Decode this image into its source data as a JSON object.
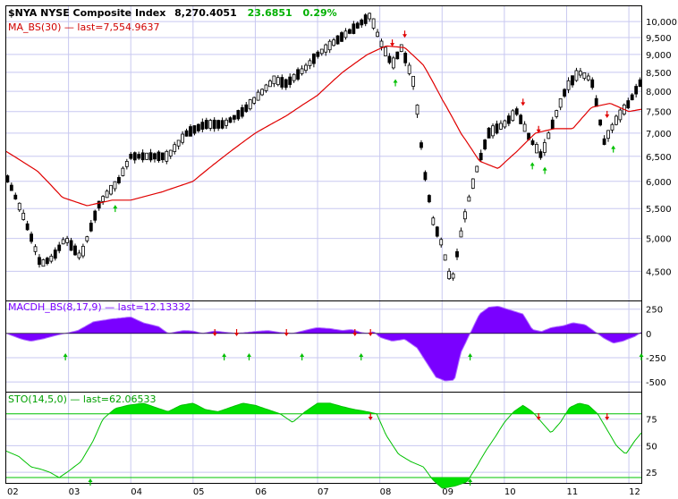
{
  "header": {
    "symbol": "$NYA NYSE Composite Index",
    "price": "8,270.4051",
    "change": "23.6851",
    "change_pct": "0.29%"
  },
  "colors": {
    "up": "#000000",
    "ma": "#e00000",
    "macd": "#7a00ff",
    "sto": "#00e000",
    "sell_arrow": "#e00000",
    "buy_arrow": "#00c000",
    "grid": "#c8c8f0",
    "sto_lines": "#00c000"
  },
  "chart_data": [
    {
      "type": "candlestick",
      "legend": "MA_BS(30) — last=7,554.9637",
      "scale": "log",
      "ylim": [
        4100,
        10500
      ],
      "y_ticks": [
        "10,000",
        "9,500",
        "9,000",
        "8,500",
        "8,000",
        "7,500",
        "7,000",
        "6,500",
        "6,000",
        "5,500",
        "5,000",
        "4,500"
      ],
      "y_tick_values": [
        10000,
        9500,
        9000,
        8500,
        8000,
        7500,
        7000,
        6500,
        6000,
        5500,
        5000,
        4500
      ],
      "x_ticks": [
        "02",
        "03",
        "04",
        "05",
        "06",
        "07",
        "08",
        "09",
        "10",
        "11",
        "12"
      ],
      "x_tick_values": [
        2002,
        2003,
        2004,
        2005,
        2006,
        2007,
        2008,
        2009,
        2010,
        2011,
        2012
      ],
      "xlim": [
        2002.0,
        2012.2
      ],
      "price_keys": [
        [
          2002.0,
          6100
        ],
        [
          2002.3,
          5300
        ],
        [
          2002.55,
          4600
        ],
        [
          2002.75,
          4700
        ],
        [
          2002.95,
          5000
        ],
        [
          2003.2,
          4700
        ],
        [
          2003.5,
          5600
        ],
        [
          2003.8,
          6000
        ],
        [
          2004.0,
          6500
        ],
        [
          2004.3,
          6500
        ],
        [
          2004.6,
          6500
        ],
        [
          2004.9,
          7000
        ],
        [
          2005.2,
          7200
        ],
        [
          2005.5,
          7200
        ],
        [
          2005.8,
          7500
        ],
        [
          2006.0,
          7800
        ],
        [
          2006.3,
          8300
        ],
        [
          2006.5,
          8200
        ],
        [
          2006.8,
          8600
        ],
        [
          2007.0,
          9000
        ],
        [
          2007.3,
          9400
        ],
        [
          2007.6,
          9800
        ],
        [
          2007.85,
          10200
        ],
        [
          2008.0,
          9400
        ],
        [
          2008.2,
          8700
        ],
        [
          2008.35,
          9200
        ],
        [
          2008.55,
          8200
        ],
        [
          2008.7,
          6300
        ],
        [
          2008.85,
          5300
        ],
        [
          2009.0,
          4900
        ],
        [
          2009.15,
          4300
        ],
        [
          2009.35,
          5300
        ],
        [
          2009.55,
          6200
        ],
        [
          2009.75,
          7000
        ],
        [
          2010.0,
          7200
        ],
        [
          2010.2,
          7500
        ],
        [
          2010.4,
          6900
        ],
        [
          2010.6,
          6500
        ],
        [
          2010.8,
          7300
        ],
        [
          2011.0,
          8100
        ],
        [
          2011.2,
          8500
        ],
        [
          2011.4,
          8300
        ],
        [
          2011.6,
          6800
        ],
        [
          2011.8,
          7300
        ],
        [
          2012.0,
          7700
        ],
        [
          2012.2,
          8270
        ]
      ],
      "ma_keys": [
        [
          2002.0,
          6600
        ],
        [
          2002.5,
          6200
        ],
        [
          2002.9,
          5700
        ],
        [
          2003.3,
          5550
        ],
        [
          2003.7,
          5650
        ],
        [
          2004.0,
          5650
        ],
        [
          2004.5,
          5800
        ],
        [
          2005.0,
          6000
        ],
        [
          2005.5,
          6500
        ],
        [
          2006.0,
          7000
        ],
        [
          2006.5,
          7400
        ],
        [
          2007.0,
          7900
        ],
        [
          2007.4,
          8500
        ],
        [
          2007.8,
          9000
        ],
        [
          2008.1,
          9250
        ],
        [
          2008.4,
          9200
        ],
        [
          2008.7,
          8700
        ],
        [
          2009.0,
          7800
        ],
        [
          2009.3,
          7000
        ],
        [
          2009.6,
          6400
        ],
        [
          2009.9,
          6250
        ],
        [
          2010.2,
          6600
        ],
        [
          2010.5,
          7000
        ],
        [
          2010.8,
          7100
        ],
        [
          2011.1,
          7100
        ],
        [
          2011.4,
          7600
        ],
        [
          2011.7,
          7700
        ],
        [
          2012.0,
          7500
        ],
        [
          2012.2,
          7554.96
        ]
      ],
      "sell_signals": [
        2007.85,
        2008.2,
        2008.4,
        2010.3,
        2010.55,
        2011.65
      ],
      "buy_signals": [
        2003.75,
        2008.25,
        2010.45,
        2010.65,
        2011.75
      ]
    },
    {
      "type": "area",
      "legend": "MACDH_BS(8,17,9) — last=12.13332",
      "ylim": [
        -600,
        330
      ],
      "y_ticks": [
        "250",
        "0",
        "-250",
        "-500"
      ],
      "y_tick_values": [
        250,
        0,
        -250,
        -500
      ],
      "series_keys": [
        [
          2002.0,
          0
        ],
        [
          2002.25,
          -60
        ],
        [
          2002.4,
          -80
        ],
        [
          2002.6,
          -55
        ],
        [
          2002.8,
          -20
        ],
        [
          2002.95,
          0
        ],
        [
          2003.15,
          30
        ],
        [
          2003.4,
          120
        ],
        [
          2003.7,
          150
        ],
        [
          2004.0,
          170
        ],
        [
          2004.2,
          110
        ],
        [
          2004.45,
          70
        ],
        [
          2004.6,
          0
        ],
        [
          2004.85,
          30
        ],
        [
          2005.0,
          25
        ],
        [
          2005.15,
          0
        ],
        [
          2005.35,
          25
        ],
        [
          2005.55,
          10
        ],
        [
          2005.7,
          0
        ],
        [
          2006.0,
          20
        ],
        [
          2006.2,
          30
        ],
        [
          2006.4,
          10
        ],
        [
          2006.6,
          0
        ],
        [
          2006.85,
          40
        ],
        [
          2007.0,
          60
        ],
        [
          2007.2,
          50
        ],
        [
          2007.4,
          30
        ],
        [
          2007.55,
          40
        ],
        [
          2007.7,
          10
        ],
        [
          2007.8,
          0
        ],
        [
          2007.9,
          20
        ],
        [
          2008.0,
          -40
        ],
        [
          2008.2,
          -80
        ],
        [
          2008.4,
          -60
        ],
        [
          2008.6,
          -150
        ],
        [
          2008.75,
          -300
        ],
        [
          2008.9,
          -450
        ],
        [
          2009.05,
          -490
        ],
        [
          2009.2,
          -480
        ],
        [
          2009.3,
          -200
        ],
        [
          2009.45,
          0
        ],
        [
          2009.6,
          200
        ],
        [
          2009.75,
          270
        ],
        [
          2009.9,
          280
        ],
        [
          2010.1,
          240
        ],
        [
          2010.3,
          200
        ],
        [
          2010.45,
          40
        ],
        [
          2010.6,
          20
        ],
        [
          2010.75,
          60
        ],
        [
          2010.95,
          80
        ],
        [
          2011.1,
          110
        ],
        [
          2011.3,
          90
        ],
        [
          2011.45,
          20
        ],
        [
          2011.6,
          -50
        ],
        [
          2011.75,
          -100
        ],
        [
          2011.9,
          -80
        ],
        [
          2012.1,
          -30
        ],
        [
          2012.2,
          12.13
        ]
      ],
      "sell_signals": [
        2005.35,
        2005.7,
        2006.5,
        2007.6,
        2007.85
      ],
      "buy_signals": [
        2002.95,
        2005.5,
        2005.9,
        2006.75,
        2007.7,
        2009.45,
        2012.2
      ]
    },
    {
      "type": "area",
      "legend": "STO(14,5,0) — last=62.06533",
      "ylim": [
        15,
        100
      ],
      "bands": [
        80,
        20
      ],
      "y_ticks": [
        "75",
        "50",
        "25"
      ],
      "y_tick_values": [
        75,
        50,
        25
      ],
      "series_keys": [
        [
          2002.0,
          45
        ],
        [
          2002.2,
          40
        ],
        [
          2002.4,
          30
        ],
        [
          2002.55,
          28
        ],
        [
          2002.7,
          25
        ],
        [
          2002.85,
          20
        ],
        [
          2003.0,
          26
        ],
        [
          2003.2,
          35
        ],
        [
          2003.4,
          55
        ],
        [
          2003.55,
          75
        ],
        [
          2003.75,
          85
        ],
        [
          2003.95,
          88
        ],
        [
          2004.2,
          90
        ],
        [
          2004.45,
          85
        ],
        [
          2004.6,
          82
        ],
        [
          2004.8,
          88
        ],
        [
          2005.0,
          90
        ],
        [
          2005.2,
          84
        ],
        [
          2005.4,
          82
        ],
        [
          2005.6,
          86
        ],
        [
          2005.8,
          90
        ],
        [
          2006.0,
          88
        ],
        [
          2006.2,
          84
        ],
        [
          2006.4,
          80
        ],
        [
          2006.6,
          72
        ],
        [
          2006.8,
          82
        ],
        [
          2007.0,
          90
        ],
        [
          2007.2,
          90
        ],
        [
          2007.45,
          86
        ],
        [
          2007.6,
          84
        ],
        [
          2007.8,
          82
        ],
        [
          2007.95,
          80
        ],
        [
          2008.1,
          60
        ],
        [
          2008.3,
          42
        ],
        [
          2008.5,
          35
        ],
        [
          2008.7,
          30
        ],
        [
          2008.85,
          18
        ],
        [
          2009.0,
          10
        ],
        [
          2009.2,
          12
        ],
        [
          2009.4,
          16
        ],
        [
          2009.55,
          30
        ],
        [
          2009.7,
          45
        ],
        [
          2009.85,
          58
        ],
        [
          2010.0,
          72
        ],
        [
          2010.15,
          82
        ],
        [
          2010.3,
          88
        ],
        [
          2010.45,
          82
        ],
        [
          2010.6,
          72
        ],
        [
          2010.75,
          62
        ],
        [
          2010.9,
          72
        ],
        [
          2011.05,
          86
        ],
        [
          2011.2,
          90
        ],
        [
          2011.35,
          88
        ],
        [
          2011.5,
          80
        ],
        [
          2011.65,
          65
        ],
        [
          2011.8,
          50
        ],
        [
          2011.95,
          42
        ],
        [
          2012.1,
          55
        ],
        [
          2012.2,
          62.07
        ]
      ],
      "sell_signals": [
        2007.85,
        2010.55,
        2011.65
      ],
      "buy_signals": [
        2003.35,
        2009.45
      ]
    }
  ]
}
